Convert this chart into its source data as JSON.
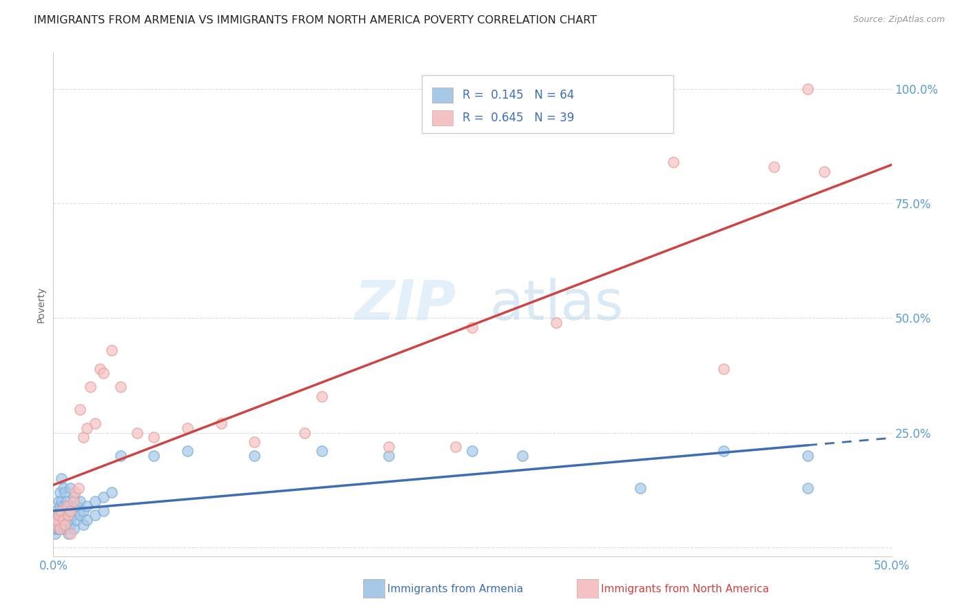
{
  "title": "IMMIGRANTS FROM ARMENIA VS IMMIGRANTS FROM NORTH AMERICA POVERTY CORRELATION CHART",
  "source": "Source: ZipAtlas.com",
  "ylabel": "Poverty",
  "xlim": [
    0.0,
    0.5
  ],
  "ylim": [
    -0.02,
    1.08
  ],
  "x_ticks": [
    0.0,
    0.1,
    0.2,
    0.3,
    0.4,
    0.5
  ],
  "x_tick_labels": [
    "0.0%",
    "",
    "",
    "",
    "",
    "50.0%"
  ],
  "y_ticks": [
    0.0,
    0.25,
    0.5,
    0.75,
    1.0
  ],
  "y_tick_labels": [
    "",
    "25.0%",
    "50.0%",
    "75.0%",
    "100.0%"
  ],
  "tick_color": "#5b9bd5",
  "blue_scatter": [
    [
      0.001,
      0.06
    ],
    [
      0.001,
      0.05
    ],
    [
      0.001,
      0.04
    ],
    [
      0.001,
      0.03
    ],
    [
      0.002,
      0.08
    ],
    [
      0.002,
      0.06
    ],
    [
      0.002,
      0.05
    ],
    [
      0.002,
      0.04
    ],
    [
      0.003,
      0.1
    ],
    [
      0.003,
      0.07
    ],
    [
      0.003,
      0.05
    ],
    [
      0.003,
      0.04
    ],
    [
      0.004,
      0.12
    ],
    [
      0.004,
      0.09
    ],
    [
      0.004,
      0.06
    ],
    [
      0.004,
      0.04
    ],
    [
      0.005,
      0.15
    ],
    [
      0.005,
      0.1
    ],
    [
      0.005,
      0.07
    ],
    [
      0.005,
      0.05
    ],
    [
      0.006,
      0.13
    ],
    [
      0.006,
      0.09
    ],
    [
      0.006,
      0.06
    ],
    [
      0.006,
      0.04
    ],
    [
      0.007,
      0.12
    ],
    [
      0.007,
      0.08
    ],
    [
      0.007,
      0.05
    ],
    [
      0.008,
      0.1
    ],
    [
      0.008,
      0.07
    ],
    [
      0.008,
      0.04
    ],
    [
      0.009,
      0.09
    ],
    [
      0.009,
      0.06
    ],
    [
      0.009,
      0.03
    ],
    [
      0.01,
      0.13
    ],
    [
      0.01,
      0.08
    ],
    [
      0.01,
      0.05
    ],
    [
      0.012,
      0.11
    ],
    [
      0.012,
      0.07
    ],
    [
      0.012,
      0.04
    ],
    [
      0.014,
      0.09
    ],
    [
      0.014,
      0.06
    ],
    [
      0.016,
      0.1
    ],
    [
      0.016,
      0.07
    ],
    [
      0.018,
      0.08
    ],
    [
      0.018,
      0.05
    ],
    [
      0.02,
      0.09
    ],
    [
      0.02,
      0.06
    ],
    [
      0.025,
      0.1
    ],
    [
      0.025,
      0.07
    ],
    [
      0.03,
      0.11
    ],
    [
      0.03,
      0.08
    ],
    [
      0.035,
      0.12
    ],
    [
      0.04,
      0.2
    ],
    [
      0.06,
      0.2
    ],
    [
      0.08,
      0.21
    ],
    [
      0.12,
      0.2
    ],
    [
      0.16,
      0.21
    ],
    [
      0.2,
      0.2
    ],
    [
      0.25,
      0.21
    ],
    [
      0.28,
      0.2
    ],
    [
      0.35,
      0.13
    ],
    [
      0.4,
      0.21
    ],
    [
      0.45,
      0.2
    ],
    [
      0.45,
      0.13
    ]
  ],
  "pink_scatter": [
    [
      0.001,
      0.05
    ],
    [
      0.002,
      0.06
    ],
    [
      0.003,
      0.07
    ],
    [
      0.004,
      0.04
    ],
    [
      0.005,
      0.08
    ],
    [
      0.006,
      0.06
    ],
    [
      0.007,
      0.05
    ],
    [
      0.008,
      0.09
    ],
    [
      0.009,
      0.07
    ],
    [
      0.01,
      0.08
    ],
    [
      0.012,
      0.1
    ],
    [
      0.013,
      0.12
    ],
    [
      0.015,
      0.13
    ],
    [
      0.016,
      0.3
    ],
    [
      0.018,
      0.24
    ],
    [
      0.02,
      0.26
    ],
    [
      0.022,
      0.35
    ],
    [
      0.025,
      0.27
    ],
    [
      0.028,
      0.39
    ],
    [
      0.03,
      0.38
    ],
    [
      0.035,
      0.43
    ],
    [
      0.04,
      0.35
    ],
    [
      0.05,
      0.25
    ],
    [
      0.06,
      0.24
    ],
    [
      0.08,
      0.26
    ],
    [
      0.1,
      0.27
    ],
    [
      0.12,
      0.23
    ],
    [
      0.15,
      0.25
    ],
    [
      0.16,
      0.33
    ],
    [
      0.2,
      0.22
    ],
    [
      0.24,
      0.22
    ],
    [
      0.25,
      0.48
    ],
    [
      0.3,
      0.49
    ],
    [
      0.37,
      0.84
    ],
    [
      0.4,
      0.39
    ],
    [
      0.43,
      0.83
    ],
    [
      0.45,
      1.0
    ],
    [
      0.46,
      0.82
    ],
    [
      0.01,
      0.03
    ]
  ],
  "blue_color_fill": "#a8c8e8",
  "blue_color_edge": "#7badd6",
  "pink_color_fill": "#f4c2c2",
  "pink_color_edge": "#e8a0a0",
  "blue_line_color": "#3d6eb5",
  "pink_line_color": "#cc4444",
  "grid_color": "#dddddd",
  "title_fontsize": 11.5,
  "legend_R1": "R =  0.145",
  "legend_N1": "N = 64",
  "legend_R2": "R =  0.645",
  "legend_N2": "N = 39",
  "legend_blue_sq": "#a8c8e8",
  "legend_pink_sq": "#f4c2c2",
  "legend_text_color": "#3d6eb5",
  "bottom_label1": "Immigrants from Armenia",
  "bottom_label2": "Immigrants from North America",
  "bottom_label_color1": "#3d6eb5",
  "bottom_label_color2": "#cc4444"
}
